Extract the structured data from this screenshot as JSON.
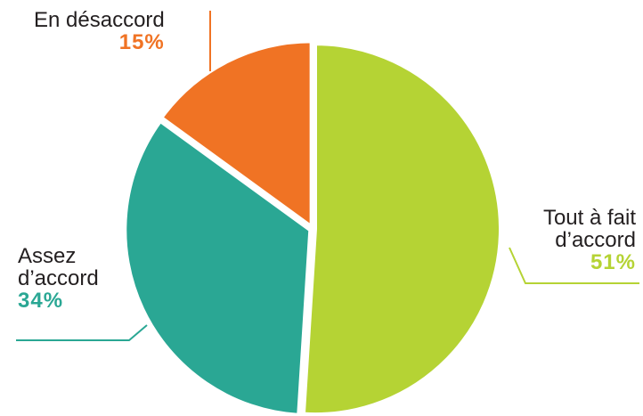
{
  "chart_data": {
    "type": "pie",
    "slices": [
      {
        "label": "Tout à fait",
        "label_line2": "d’accord",
        "value": 51,
        "value_text": "51%",
        "color": "#b5d334"
      },
      {
        "label": "Assez",
        "label_line2": "d’accord",
        "value": 34,
        "value_text": "34%",
        "color": "#2aa794"
      },
      {
        "label": "En désaccord",
        "label_line2": "",
        "value": 15,
        "value_text": "15%",
        "color": "#f07324"
      }
    ],
    "start_angle_deg": 0,
    "direction": "clockwise",
    "text_color": "#231f20"
  }
}
